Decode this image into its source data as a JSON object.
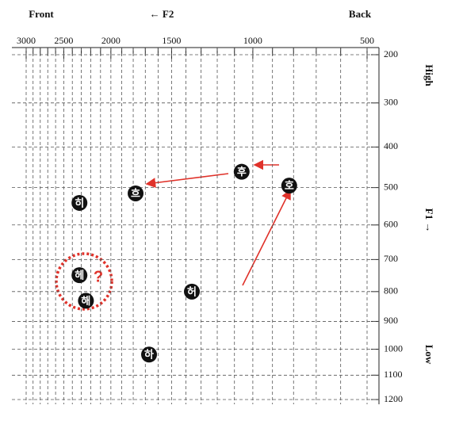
{
  "chart_data": {
    "type": "scatter",
    "scale": "bark",
    "top_left_label": "Front",
    "top_center_label": "← F2",
    "top_right_label": "Back",
    "right_top_label": "High",
    "right_middle_label": "F1 →",
    "right_bottom_label": "Low",
    "labels": [
      "후",
      "흐",
      "히",
      "호",
      "헤",
      "해",
      "허",
      "하"
    ],
    "x": [
      1060,
      1780,
      2320,
      820,
      2320,
      2250,
      1360,
      1670
    ],
    "y": [
      460,
      515,
      540,
      495,
      748,
      830,
      800,
      1020
    ],
    "color": "#111111",
    "annotation": "?",
    "xlim": [
      3000,
      500
    ],
    "ylim": [
      200,
      1200
    ],
    "xticks": [
      3000,
      2500,
      2000,
      1500,
      1000,
      500
    ],
    "xminor_ticks": [
      2900,
      2800,
      2700,
      2600,
      2400,
      2300,
      2200,
      2100,
      1900,
      1800,
      1700,
      1600,
      1400,
      1300,
      1200,
      1100,
      900,
      800,
      700,
      600
    ],
    "yticks": [
      200,
      300,
      400,
      500,
      600,
      700,
      800,
      900,
      1000,
      1100,
      1200
    ],
    "grid": true
  }
}
